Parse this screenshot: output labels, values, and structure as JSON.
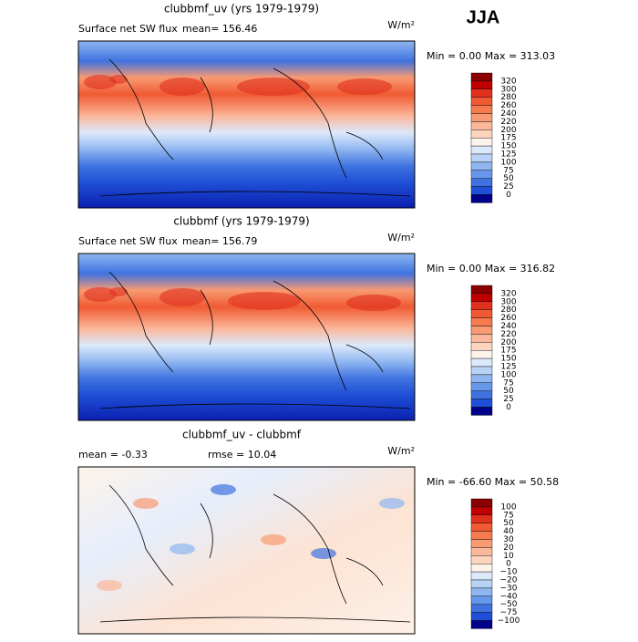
{
  "season": "JJA",
  "panels": [
    {
      "title": "clubbmf_uv (yrs 1979-1979)",
      "left": "Surface net SW flux",
      "stat": "mean= 156.46",
      "units": "W/m²",
      "minmax": "Min =    0.00 Max = 313.03",
      "levels": [
        "320",
        "300",
        "280",
        "260",
        "240",
        "220",
        "200",
        "175",
        "150",
        "125",
        "100",
        "75",
        "50",
        "25",
        "0"
      ]
    },
    {
      "title": "clubbmf (yrs 1979-1979)",
      "left": "Surface net SW flux",
      "stat": "mean= 156.79",
      "units": "W/m²",
      "minmax": "Min =    0.00 Max = 316.82",
      "levels": [
        "320",
        "300",
        "280",
        "260",
        "240",
        "220",
        "200",
        "175",
        "150",
        "125",
        "100",
        "75",
        "50",
        "25",
        "0"
      ]
    },
    {
      "title": "clubbmf_uv - clubbmf",
      "left": "mean =  -0.33",
      "stat": "rmse =  10.04",
      "units": "W/m²",
      "minmax": "Min = -66.60 Max =  50.58",
      "levels": [
        "100",
        "75",
        "50",
        "40",
        "30",
        "20",
        "10",
        "0",
        "−10",
        "−20",
        "−30",
        "−40",
        "−50",
        "−75",
        "−100"
      ]
    }
  ],
  "colors": [
    "#8b0000",
    "#c00000",
    "#e0301e",
    "#f05a32",
    "#f57b4f",
    "#f89a72",
    "#fbb79a",
    "#fdd5bf",
    "#fdf3ea",
    "#dce9fb",
    "#b9d3f7",
    "#8fb6f0",
    "#6697ea",
    "#3f72e0",
    "#1f4fd6",
    "#00008b"
  ]
}
